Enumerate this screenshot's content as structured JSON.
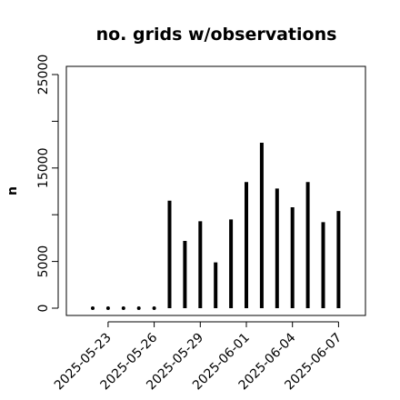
{
  "chart_data": {
    "type": "bar",
    "title": "no. grids w/observations",
    "xlabel": "",
    "ylabel": "n",
    "ylim": [
      0,
      26000
    ],
    "yticks": [
      0,
      5000,
      10000,
      15000,
      20000,
      25000
    ],
    "ytick_labels": [
      "0",
      "5000",
      "",
      "15000",
      "",
      "25000"
    ],
    "x": [
      "2025-05-22",
      "2025-05-23",
      "2025-05-24",
      "2025-05-25",
      "2025-05-26",
      "2025-05-27",
      "2025-05-28",
      "2025-05-29",
      "2025-05-30",
      "2025-05-31",
      "2025-06-01",
      "2025-06-02",
      "2025-06-03",
      "2025-06-04",
      "2025-06-05",
      "2025-06-06",
      "2025-06-07"
    ],
    "values": [
      0,
      0,
      0,
      0,
      0,
      11500,
      7200,
      9300,
      4900,
      9500,
      13500,
      17700,
      12800,
      10800,
      13500,
      9200,
      10400
    ],
    "tick_labels": [
      {
        "label": "2025-05-23",
        "color": "#000000"
      },
      {
        "label": "2025-05-26",
        "color": "#000000"
      },
      {
        "label": "2025-05-29",
        "color": "#228B22"
      },
      {
        "label": "2025-06-01",
        "color": "#000000"
      },
      {
        "label": "2025-06-04",
        "color": "#000000"
      },
      {
        "label": "2025-06-07",
        "color": "#000000"
      }
    ],
    "bar_color": "#000000",
    "grid": false
  }
}
